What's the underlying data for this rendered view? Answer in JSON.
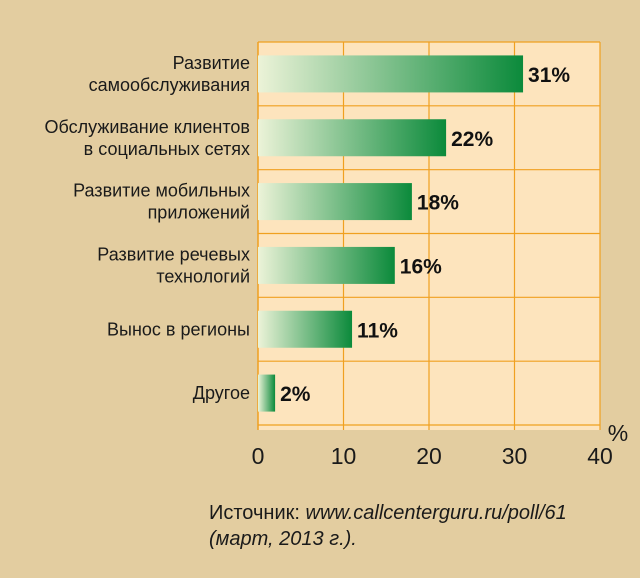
{
  "chart_data": {
    "type": "bar",
    "orientation": "horizontal",
    "categories": [
      [
        "Развитие",
        "самообслуживания"
      ],
      [
        "Обслуживание клиентов",
        "в социальных сетях"
      ],
      [
        "Развитие мобильных",
        "приложений"
      ],
      [
        "Развитие речевых",
        "технологий"
      ],
      [
        "Вынос в регионы"
      ],
      [
        "Другое"
      ]
    ],
    "values": [
      31,
      22,
      18,
      16,
      11,
      2
    ],
    "value_labels": [
      "31%",
      "22%",
      "18%",
      "16%",
      "11%",
      "2%"
    ],
    "xlim": [
      0,
      40
    ],
    "xticks": [
      0,
      10,
      20,
      30,
      40
    ],
    "xlabel": "%",
    "grid": true,
    "colors": {
      "bar_start": "#ecf3d8",
      "bar_end": "#0b8a3b",
      "plot_bg": "#fde4bd",
      "grid": "#f0a020",
      "page_bg": "#e3cda0"
    }
  },
  "source": {
    "prefix": "Источник: ",
    "url": "www.callcenterguru.ru/poll/61",
    "date": "(март, 2013 г.)."
  }
}
